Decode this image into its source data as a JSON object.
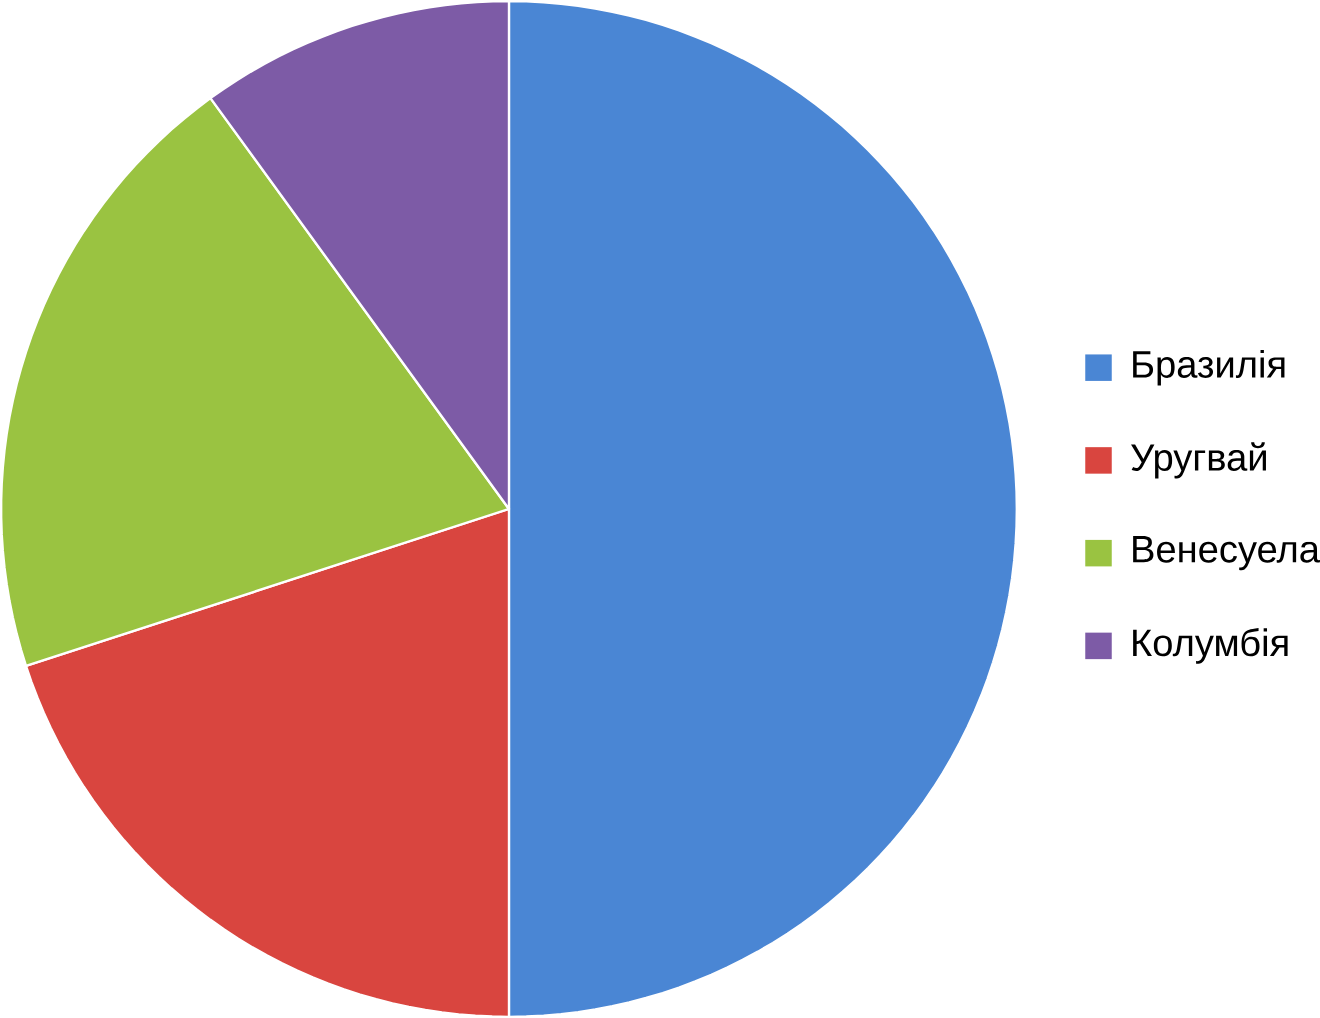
{
  "chart_data": {
    "type": "pie",
    "categories": [
      "Бразилія",
      "Уругвай",
      "Венесуела",
      "Колумбія"
    ],
    "values": [
      50,
      20,
      20,
      10
    ],
    "colors": [
      "#4a86d4",
      "#d9453f",
      "#9ac341",
      "#7d5ba6"
    ],
    "legend": "right"
  }
}
